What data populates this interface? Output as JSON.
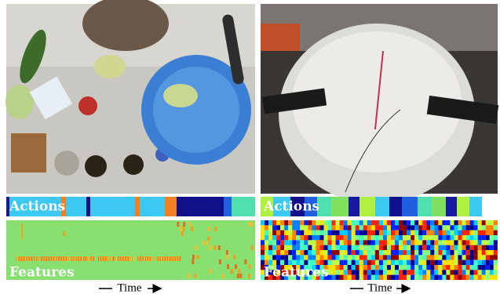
{
  "panels": [
    {
      "actions_label": "Actions",
      "features_label": "Features",
      "time_label": "Time"
    },
    {
      "actions_label": "Actions",
      "features_label": "Features",
      "time_label": "Time"
    }
  ]
}
